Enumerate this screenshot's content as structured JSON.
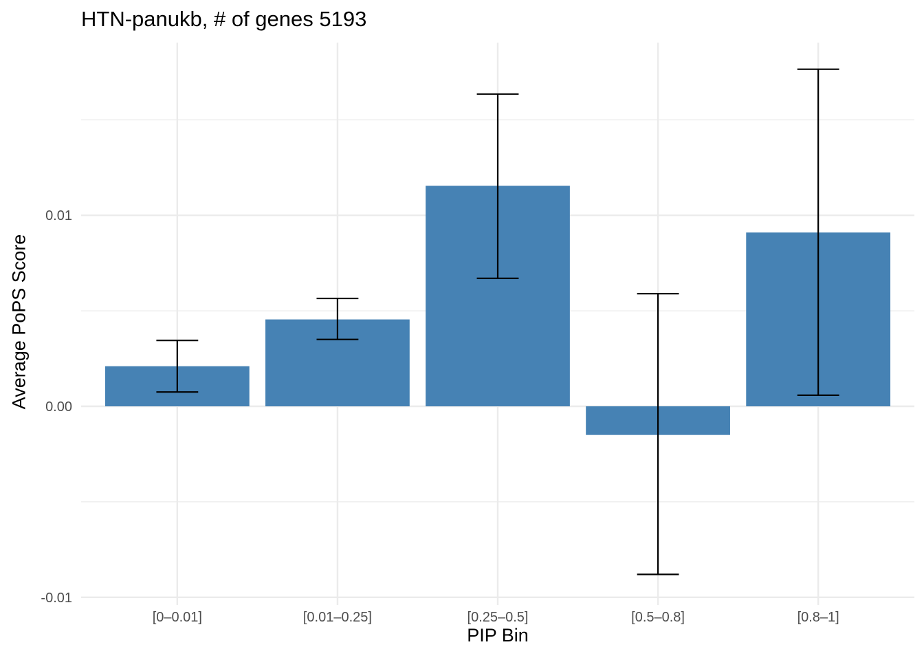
{
  "chart_data": {
    "type": "bar",
    "title": "HTN-panukb, # of genes 5193",
    "xlabel": "PIP Bin",
    "ylabel": "Average PoPS Score",
    "categories": [
      "[0–0.01]",
      "[0.01–0.25]",
      "[0.25–0.5]",
      "[0.5–0.8]",
      "[0.8–1]"
    ],
    "values": [
      0.0021,
      0.00455,
      0.01155,
      -0.0015,
      0.0091
    ],
    "error_low": [
      0.00075,
      0.0035,
      0.0067,
      -0.0088,
      0.00058
    ],
    "error_high": [
      0.00345,
      0.00565,
      0.01635,
      0.0059,
      0.01765
    ],
    "ylim": [
      -0.01,
      0.019
    ],
    "yticks": [
      -0.01,
      0,
      0.01
    ],
    "ytick_labels": [
      "-0.01",
      "0.00",
      "0.01"
    ],
    "grid": true,
    "bar_color": "#4682b4",
    "error_bar_color": "#000000",
    "gridline_color": "#ebebeb"
  }
}
